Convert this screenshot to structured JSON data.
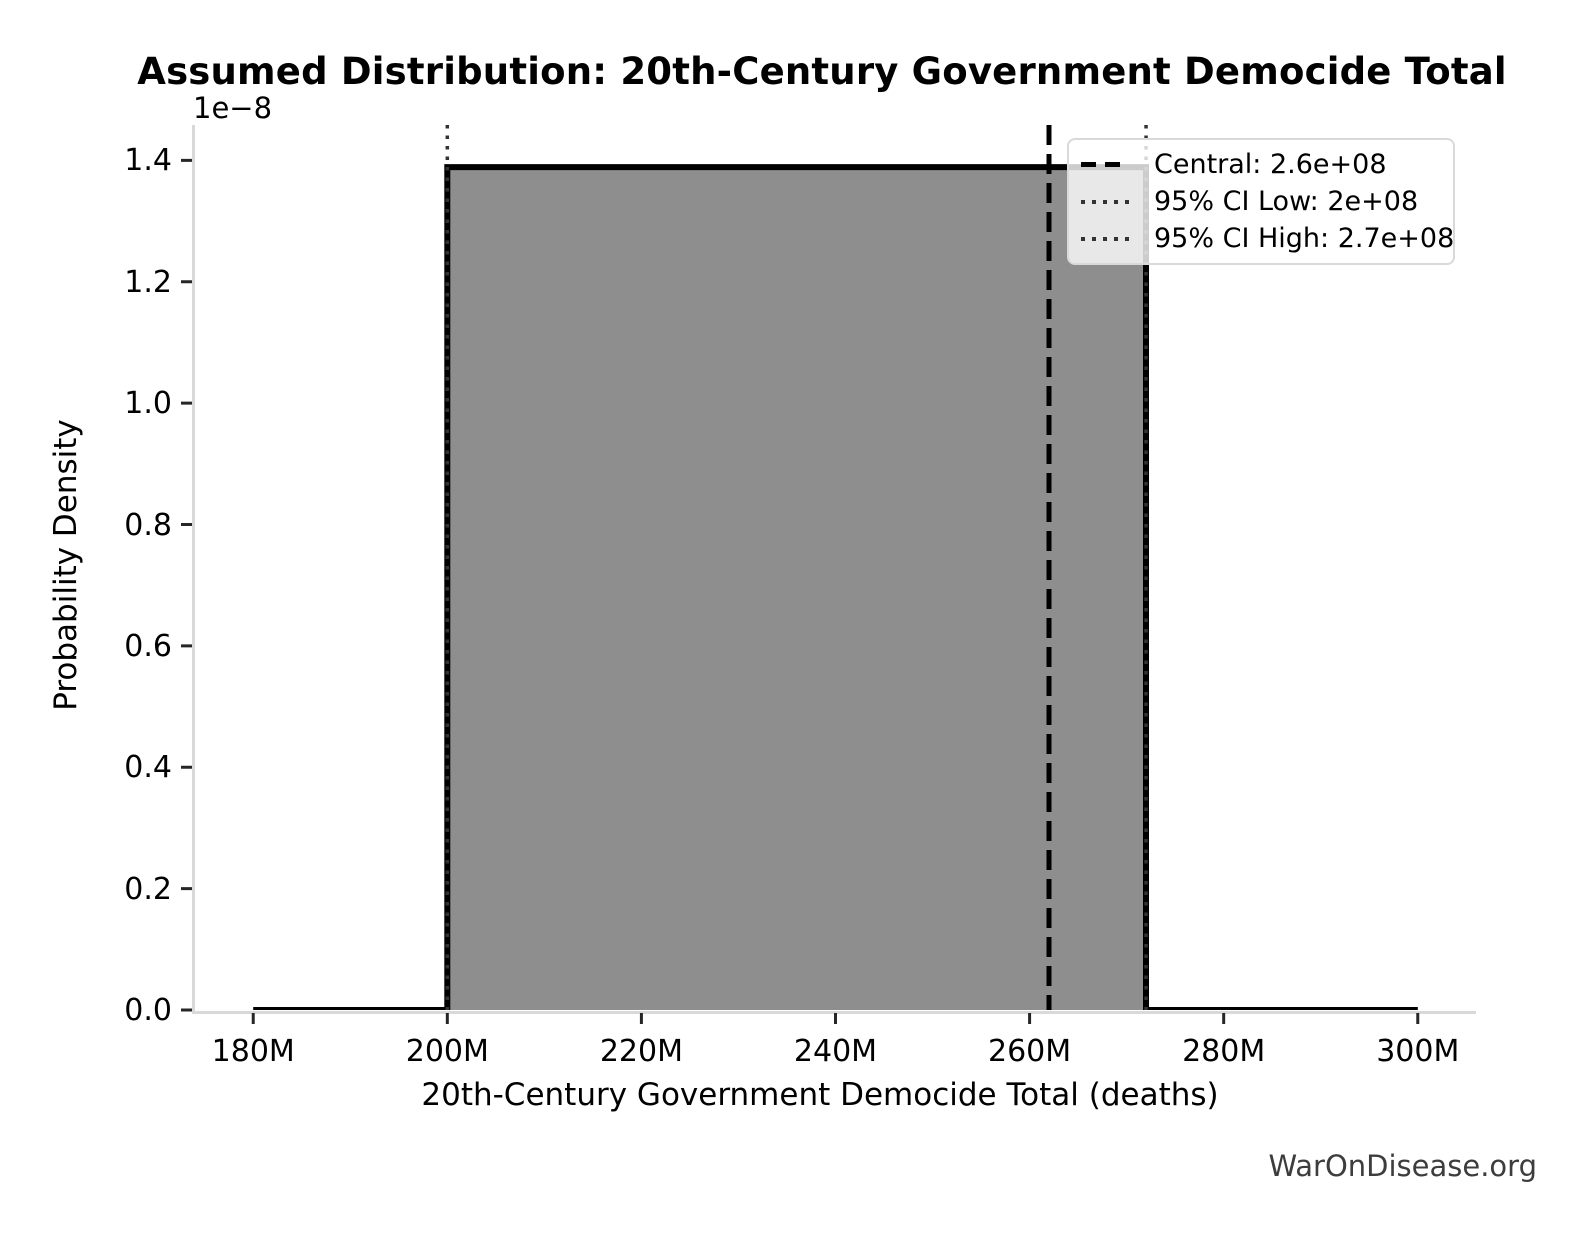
{
  "title": "Assumed Distribution: 20th-Century Government Democide Total",
  "watermark": "WarOnDisease.org",
  "colors": {
    "fill": "#8e8e8e",
    "line": "#000000",
    "spine": "#d9d9d9",
    "tick": "#262626",
    "dotted_line": "#333333",
    "dashed_line": "#000000",
    "legend_border": "#d9d9d9",
    "watermark": "#3d3d3d"
  },
  "chart_data": {
    "type": "area",
    "subtype": "uniform-probability-density-step",
    "title": "Assumed Distribution: 20th-Century Government Democide Total",
    "xlabel": "20th-Century Government Democide Total (deaths)",
    "ylabel": "Probability Density",
    "y_offset_label": "1e−8",
    "grid": false,
    "xlim": [
      174000000,
      306000000
    ],
    "ylim": [
      0,
      1.4583e-08
    ],
    "distribution": {
      "support_low": 200000000,
      "support_high": 272000000,
      "density": 1.3889e-08
    },
    "pdf_points": [
      [
        180000000,
        0
      ],
      [
        200000000,
        0
      ],
      [
        200000000,
        1.3889e-08
      ],
      [
        272000000,
        1.3889e-08
      ],
      [
        272000000,
        0
      ],
      [
        300000000,
        0
      ]
    ],
    "central": 262000000,
    "ci_low": 200000000,
    "ci_high": 272000000,
    "x_ticks": [
      {
        "value": 180000000,
        "label": "180M"
      },
      {
        "value": 200000000,
        "label": "200M"
      },
      {
        "value": 220000000,
        "label": "220M"
      },
      {
        "value": 240000000,
        "label": "240M"
      },
      {
        "value": 260000000,
        "label": "260M"
      },
      {
        "value": 280000000,
        "label": "280M"
      },
      {
        "value": 300000000,
        "label": "300M"
      }
    ],
    "y_ticks": [
      {
        "value": 0,
        "label": "0.0"
      },
      {
        "value": 2e-09,
        "label": "0.2"
      },
      {
        "value": 4e-09,
        "label": "0.4"
      },
      {
        "value": 6e-09,
        "label": "0.6"
      },
      {
        "value": 8e-09,
        "label": "0.8"
      },
      {
        "value": 1e-08,
        "label": "1.0"
      },
      {
        "value": 1.2e-08,
        "label": "1.2"
      },
      {
        "value": 1.4e-08,
        "label": "1.4"
      }
    ],
    "legend": {
      "position": "upper right",
      "items": [
        {
          "style": "dashed",
          "label": "Central: 2.6e+08"
        },
        {
          "style": "dotted",
          "label": "95% CI Low: 2e+08"
        },
        {
          "style": "dotted",
          "label": "95% CI High: 2.7e+08"
        }
      ]
    }
  }
}
